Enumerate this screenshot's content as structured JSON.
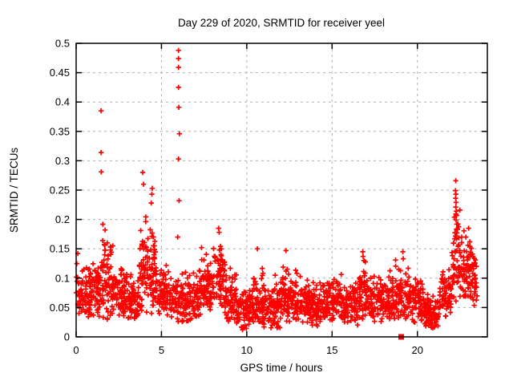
{
  "window": {
    "kind": "gnuplot-chart-image",
    "bg_color": "#ffffff"
  },
  "chart_data": {
    "type": "scatter",
    "title": "Day 229 of 2020, SRMTID for receiver yeel",
    "xlabel": "GPS time / hours",
    "ylabel": "SRMTID / TECUs",
    "xlim": [
      0,
      24.1
    ],
    "ylim": [
      0,
      0.5
    ],
    "grid": true,
    "legend": "none",
    "marker": "plus",
    "marker_color": "#ff0000",
    "grid_color": "#b0b0b0",
    "frame_color": "#000000",
    "xticks": {
      "values": [
        0,
        5,
        10,
        15,
        20
      ],
      "labels": [
        "0",
        "5",
        "10",
        "15",
        "20"
      ]
    },
    "yticks": {
      "values": [
        0,
        0.05,
        0.1,
        0.15,
        0.2,
        0.25,
        0.3,
        0.35,
        0.4,
        0.45,
        0.5
      ],
      "labels": [
        "0",
        "0.05",
        "0.1",
        "0.15",
        "0.2",
        "0.25",
        "0.3",
        "0.35",
        "0.4",
        "0.45",
        "0.5"
      ]
    },
    "outlier_points": [
      [
        1.46,
        0.385
      ],
      [
        1.46,
        0.314
      ],
      [
        1.47,
        0.281
      ],
      [
        3.9,
        0.28
      ],
      [
        3.95,
        0.26
      ],
      [
        4.46,
        0.253
      ],
      [
        4.44,
        0.243
      ],
      [
        4.4,
        0.228
      ],
      [
        6.0,
        0.488
      ],
      [
        6.0,
        0.474
      ],
      [
        6.0,
        0.459
      ],
      [
        6.0,
        0.425
      ],
      [
        6.02,
        0.391
      ],
      [
        6.05,
        0.346
      ],
      [
        6.0,
        0.303
      ],
      [
        6.03,
        0.232
      ],
      [
        22.25,
        0.266
      ],
      [
        22.23,
        0.249
      ],
      [
        22.26,
        0.243
      ],
      [
        22.24,
        0.236
      ],
      [
        22.27,
        0.229
      ],
      [
        22.25,
        0.221
      ],
      [
        22.28,
        0.214
      ],
      [
        22.3,
        0.207
      ],
      [
        22.27,
        0.199
      ],
      [
        22.31,
        0.192
      ],
      [
        0.1,
        0.142
      ],
      [
        2.15,
        0.155
      ],
      [
        5.95,
        0.17
      ],
      [
        7.35,
        0.152
      ],
      [
        8.35,
        0.185
      ],
      [
        8.38,
        0.178
      ],
      [
        10.62,
        0.15
      ],
      [
        12.3,
        0.147
      ],
      [
        16.8,
        0.145
      ],
      [
        16.82,
        0.137
      ],
      [
        19.15,
        0.145
      ],
      [
        19.17,
        0.133
      ],
      [
        23.0,
        0.185
      ]
    ],
    "zero_marker": {
      "x": 19.05,
      "y": 0,
      "shape": "filled-square"
    },
    "band_segments": [
      {
        "x0": 0.0,
        "x1": 1.4,
        "n": 130,
        "center": 0.075,
        "spread": 0.035,
        "lo": 0.028,
        "hi": 0.15
      },
      {
        "x0": 1.4,
        "x1": 2.1,
        "n": 70,
        "center": 0.095,
        "spread": 0.055,
        "lo": 0.03,
        "hi": 0.21
      },
      {
        "x0": 2.1,
        "x1": 3.0,
        "n": 85,
        "center": 0.07,
        "spread": 0.035,
        "lo": 0.03,
        "hi": 0.165
      },
      {
        "x0": 3.0,
        "x1": 3.7,
        "n": 65,
        "center": 0.06,
        "spread": 0.03,
        "lo": 0.025,
        "hi": 0.12
      },
      {
        "x0": 3.7,
        "x1": 4.7,
        "n": 110,
        "center": 0.115,
        "spread": 0.06,
        "lo": 0.04,
        "hi": 0.26
      },
      {
        "x0": 4.7,
        "x1": 5.4,
        "n": 65,
        "center": 0.075,
        "spread": 0.03,
        "lo": 0.035,
        "hi": 0.13
      },
      {
        "x0": 5.4,
        "x1": 6.3,
        "n": 80,
        "center": 0.065,
        "spread": 0.035,
        "lo": 0.025,
        "hi": 0.17
      },
      {
        "x0": 6.3,
        "x1": 7.2,
        "n": 80,
        "center": 0.06,
        "spread": 0.03,
        "lo": 0.025,
        "hi": 0.12
      },
      {
        "x0": 7.2,
        "x1": 8.0,
        "n": 75,
        "center": 0.08,
        "spread": 0.04,
        "lo": 0.035,
        "hi": 0.165
      },
      {
        "x0": 8.0,
        "x1": 8.7,
        "n": 65,
        "center": 0.1,
        "spread": 0.045,
        "lo": 0.04,
        "hi": 0.19
      },
      {
        "x0": 8.7,
        "x1": 9.4,
        "n": 65,
        "center": 0.065,
        "spread": 0.035,
        "lo": 0.02,
        "hi": 0.13
      },
      {
        "x0": 9.4,
        "x1": 10.4,
        "n": 90,
        "center": 0.045,
        "spread": 0.025,
        "lo": 0.012,
        "hi": 0.09
      },
      {
        "x0": 10.4,
        "x1": 11.0,
        "n": 55,
        "center": 0.06,
        "spread": 0.035,
        "lo": 0.02,
        "hi": 0.135
      },
      {
        "x0": 11.0,
        "x1": 12.0,
        "n": 90,
        "center": 0.05,
        "spread": 0.03,
        "lo": 0.015,
        "hi": 0.11
      },
      {
        "x0": 12.0,
        "x1": 12.6,
        "n": 55,
        "center": 0.065,
        "spread": 0.035,
        "lo": 0.025,
        "hi": 0.148
      },
      {
        "x0": 12.6,
        "x1": 13.6,
        "n": 90,
        "center": 0.06,
        "spread": 0.03,
        "lo": 0.025,
        "hi": 0.13
      },
      {
        "x0": 13.6,
        "x1": 14.6,
        "n": 90,
        "center": 0.05,
        "spread": 0.028,
        "lo": 0.018,
        "hi": 0.1
      },
      {
        "x0": 14.6,
        "x1": 15.6,
        "n": 90,
        "center": 0.06,
        "spread": 0.03,
        "lo": 0.025,
        "hi": 0.12
      },
      {
        "x0": 15.6,
        "x1": 16.5,
        "n": 80,
        "center": 0.055,
        "spread": 0.028,
        "lo": 0.02,
        "hi": 0.105
      },
      {
        "x0": 16.5,
        "x1": 17.3,
        "n": 75,
        "center": 0.07,
        "spread": 0.035,
        "lo": 0.03,
        "hi": 0.148
      },
      {
        "x0": 17.3,
        "x1": 18.5,
        "n": 105,
        "center": 0.062,
        "spread": 0.03,
        "lo": 0.025,
        "hi": 0.12
      },
      {
        "x0": 18.5,
        "x1": 19.5,
        "n": 90,
        "center": 0.07,
        "spread": 0.038,
        "lo": 0.03,
        "hi": 0.148
      },
      {
        "x0": 19.5,
        "x1": 20.4,
        "n": 80,
        "center": 0.058,
        "spread": 0.03,
        "lo": 0.022,
        "hi": 0.115
      },
      {
        "x0": 20.4,
        "x1": 21.3,
        "n": 80,
        "center": 0.042,
        "spread": 0.022,
        "lo": 0.014,
        "hi": 0.085
      },
      {
        "x0": 21.3,
        "x1": 22.0,
        "n": 65,
        "center": 0.065,
        "spread": 0.032,
        "lo": 0.028,
        "hi": 0.13
      },
      {
        "x0": 22.0,
        "x1": 22.5,
        "n": 55,
        "center": 0.13,
        "spread": 0.06,
        "lo": 0.06,
        "hi": 0.25
      },
      {
        "x0": 22.5,
        "x1": 23.2,
        "n": 70,
        "center": 0.11,
        "spread": 0.045,
        "lo": 0.055,
        "hi": 0.2
      },
      {
        "x0": 23.2,
        "x1": 23.5,
        "n": 30,
        "center": 0.09,
        "spread": 0.04,
        "lo": 0.04,
        "hi": 0.16
      }
    ],
    "seed": 20200229
  }
}
